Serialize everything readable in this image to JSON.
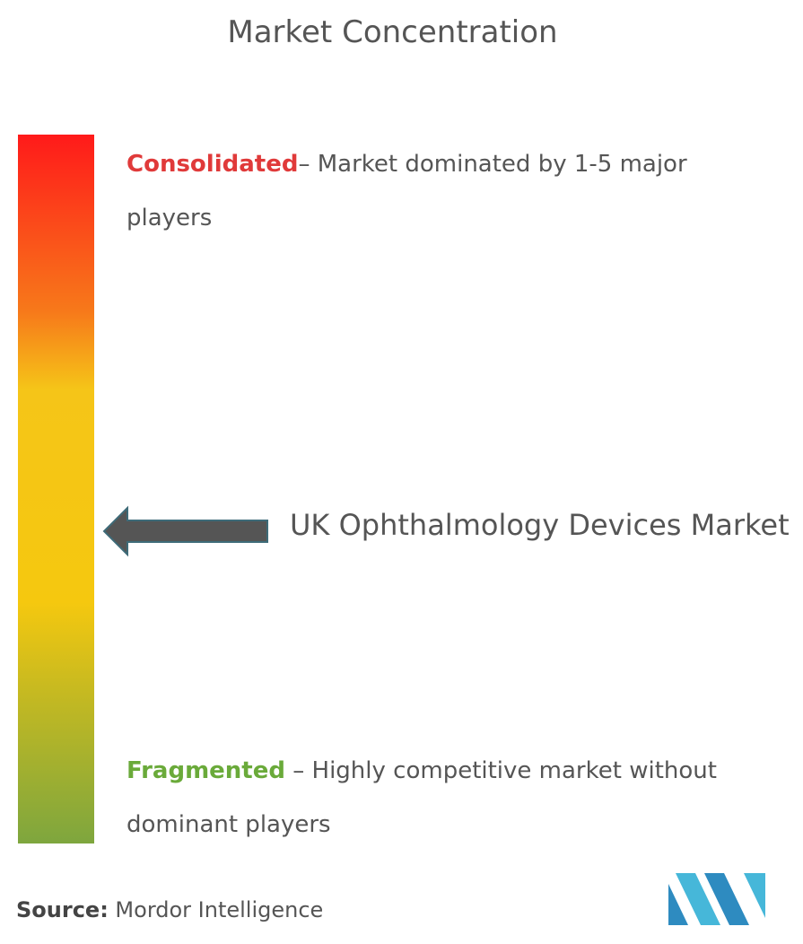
{
  "title": "Market Concentration",
  "consolidated": {
    "label": "Consolidated",
    "text": "– Market dominated by 1-5 major players"
  },
  "fragmented": {
    "label": "Fragmented",
    "text": " – Highly competitive market without dominant players"
  },
  "market": "UK Ophthalmology Devices Market",
  "source": {
    "label": "Source:",
    "text": " Mordor Intelligence"
  }
}
